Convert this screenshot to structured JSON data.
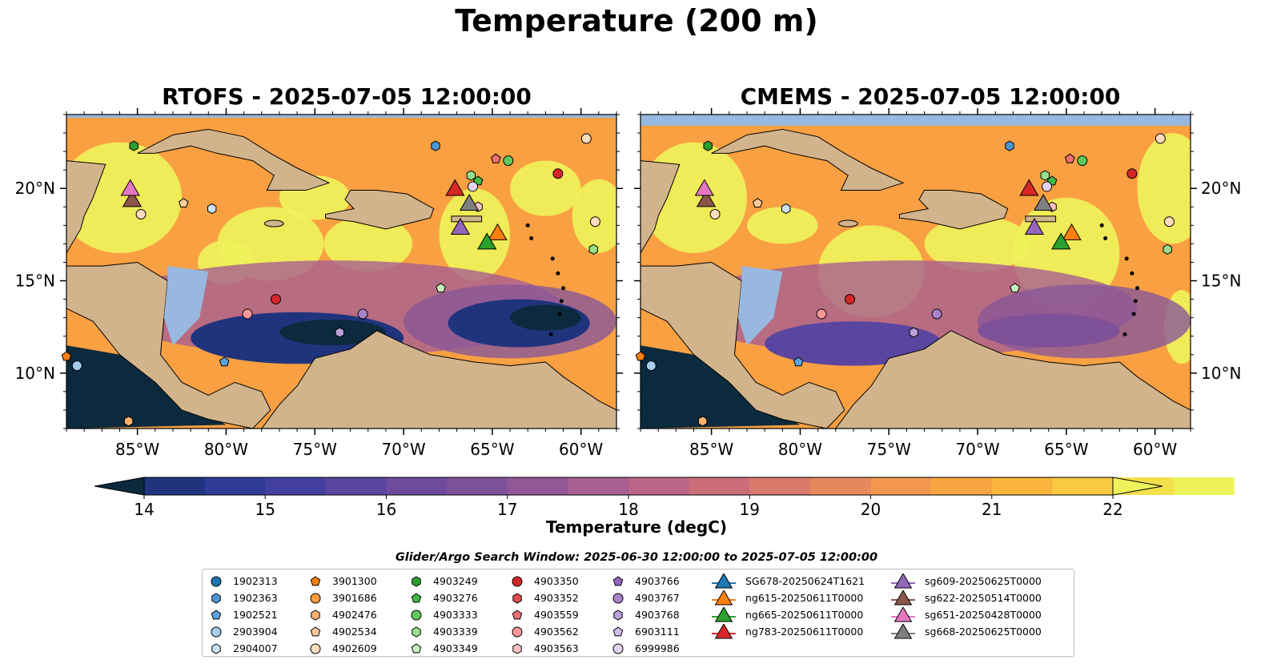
{
  "title": "Temperature (200 m)",
  "panels": [
    {
      "title": "RTOFS - 2025-07-05 12:00:00"
    },
    {
      "title": "CMEMS - 2025-07-05 12:00:00"
    }
  ],
  "axes": {
    "lon_ticks": [
      "85°W",
      "80°W",
      "75°W",
      "70°W",
      "65°W",
      "60°W"
    ],
    "lat_ticks": [
      "20°N",
      "15°N",
      "10°N"
    ],
    "lon_range": [
      -89,
      -58
    ],
    "lat_range": [
      7,
      24
    ]
  },
  "colorbar": {
    "label": "Temperature (degC)",
    "ticks": [
      "14",
      "15",
      "16",
      "17",
      "18",
      "19",
      "20",
      "21",
      "22"
    ],
    "range": [
      14,
      22
    ],
    "extend": "both",
    "colors": [
      "#0b2a3d",
      "#142e5e",
      "#20347d",
      "#2f3a96",
      "#44409f",
      "#5a45a0",
      "#6e4b9c",
      "#7f5199",
      "#925896",
      "#a85f91",
      "#bb6687",
      "#cb6e7a",
      "#d97a6c",
      "#e7875c",
      "#f2974d",
      "#f7a540",
      "#f8b43b",
      "#f9c93f",
      "#f3e04b",
      "#eef35b"
    ]
  },
  "search_window": "Glider/Argo Search Window: 2025-06-30 12:00:00 to 2025-07-05 12:00:00",
  "colors": {
    "land": "#d2b48c",
    "shelf": "#98b8e0",
    "warm": "#f9a042",
    "hot": "#eef35b",
    "cold": "#0b2a3d"
  },
  "legend": {
    "argo": [
      {
        "label": "1902313",
        "marker": "circle",
        "color": "#1f77b4"
      },
      {
        "label": "1902363",
        "marker": "hexagon",
        "color": "#4e97d6"
      },
      {
        "label": "1902521",
        "marker": "pentagon",
        "color": "#5ba3e0"
      },
      {
        "label": "2903904",
        "marker": "circle",
        "color": "#a4cdf0"
      },
      {
        "label": "2904007",
        "marker": "hexagon",
        "color": "#c8e2f7"
      },
      {
        "label": "3901300",
        "marker": "pentagon",
        "color": "#ff7f0e"
      },
      {
        "label": "3901686",
        "marker": "circle",
        "color": "#ff9a3c"
      },
      {
        "label": "4902476",
        "marker": "hexagon",
        "color": "#ffb26e"
      },
      {
        "label": "4902534",
        "marker": "pentagon",
        "color": "#ffcb9a"
      },
      {
        "label": "4902609",
        "marker": "circle",
        "color": "#ffdcbc"
      },
      {
        "label": "4903249",
        "marker": "hexagon",
        "color": "#2ca02c"
      },
      {
        "label": "4903276",
        "marker": "pentagon",
        "color": "#43b943"
      },
      {
        "label": "4903333",
        "marker": "circle",
        "color": "#5fc95f"
      },
      {
        "label": "4903339",
        "marker": "hexagon",
        "color": "#98df8a"
      },
      {
        "label": "4903349",
        "marker": "pentagon",
        "color": "#c6f0bb"
      },
      {
        "label": "4903350",
        "marker": "circle",
        "color": "#d62728"
      },
      {
        "label": "4903352",
        "marker": "hexagon",
        "color": "#e34a4a"
      },
      {
        "label": "4903559",
        "marker": "pentagon",
        "color": "#ef6f6f"
      },
      {
        "label": "4903562",
        "marker": "circle",
        "color": "#ff9896"
      },
      {
        "label": "4903563",
        "marker": "hexagon",
        "color": "#ffc1c0"
      },
      {
        "label": "4903766",
        "marker": "pentagon",
        "color": "#9467bd"
      },
      {
        "label": "4903767",
        "marker": "circle",
        "color": "#a883cb"
      },
      {
        "label": "4903768",
        "marker": "hexagon",
        "color": "#bb9fd8"
      },
      {
        "label": "6903111",
        "marker": "pentagon",
        "color": "#d1bce8"
      },
      {
        "label": "6999986",
        "marker": "circle",
        "color": "#e3d3f3"
      }
    ],
    "gliders": [
      {
        "label": "SG678-20250624T1621",
        "color": "#1f77b4"
      },
      {
        "label": "ng615-20250611T0000",
        "color": "#ff7f0e"
      },
      {
        "label": "ng665-20250611T0000",
        "color": "#2ca02c"
      },
      {
        "label": "ng783-20250611T0000",
        "color": "#d62728"
      },
      {
        "label": "sg609-20250625T0000",
        "color": "#9467bd"
      },
      {
        "label": "sg622-20250514T0000",
        "color": "#8c564b"
      },
      {
        "label": "sg651-20250428T0000",
        "color": "#e377c2"
      },
      {
        "label": "sg668-20250625T0000",
        "color": "#7f7f7f"
      }
    ]
  }
}
